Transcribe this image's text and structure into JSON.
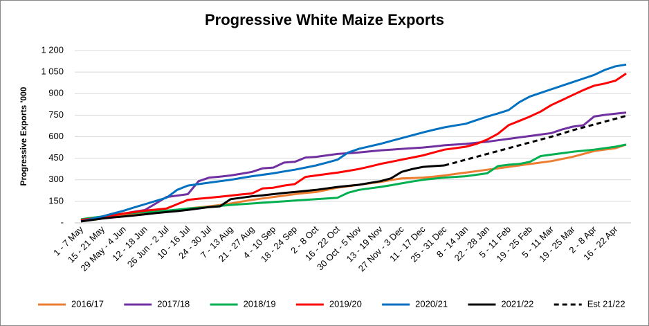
{
  "chart_data": {
    "type": "line",
    "title": "Progressive White Maize Exports",
    "y_label": "Progressive Exports '000",
    "categories": [
      "1 - 7 May",
      null,
      "15 - 21 May",
      null,
      "29 May - 4 Jun",
      null,
      "12 - 18 Jun",
      null,
      "26 Jun - 2 Jul",
      null,
      "10 - 16 Jul",
      null,
      "24 - 30 Jul",
      null,
      "7 - 13 Aug",
      null,
      "21 - 27 Aug",
      null,
      "4 - 10 Sep",
      null,
      "18 - 24 Sep",
      null,
      "2 - 8 Oct",
      null,
      "16 - 22 Oct",
      null,
      "30 Oct - 5 Nov",
      null,
      "13 - 19 Nov",
      null,
      "27 Nov - 3 Dec",
      null,
      "11 - 17 Dec",
      null,
      "25 - 31 Dec",
      null,
      "8 - 14 Jan",
      null,
      "22 - 28 Jan",
      null,
      "5 - 11 Feb",
      null,
      "19 - 25 Feb",
      null,
      "5 - 11 Mar",
      null,
      "19 - 25 Mar",
      null,
      "2 - 8 Apr",
      null,
      "16 - 22 Apr",
      null
    ],
    "ylim": [
      0,
      1200
    ],
    "yticks": [
      {
        "value": 0,
        "label": "-"
      },
      150,
      300,
      450,
      600,
      750,
      900,
      {
        "value": 1050,
        "label": "1 050"
      },
      {
        "value": 1200,
        "label": "1 200"
      }
    ],
    "grid": true,
    "legend": "bottom",
    "series": [
      {
        "name": "2016/17",
        "color": "#ED7D31",
        "dashed": false,
        "values": [
          20,
          28,
          35,
          42,
          50,
          60,
          70,
          75,
          80,
          90,
          100,
          108,
          115,
          125,
          135,
          148,
          160,
          170,
          180,
          190,
          200,
          208,
          215,
          230,
          245,
          255,
          265,
          275,
          285,
          298,
          310,
          312,
          315,
          322,
          330,
          340,
          350,
          360,
          370,
          380,
          390,
          400,
          410,
          420,
          430,
          445,
          460,
          480,
          500,
          510,
          520,
          545
        ]
      },
      {
        "name": "2017/18",
        "color": "#7030A0",
        "dashed": false,
        "values": [
          15,
          28,
          40,
          52,
          65,
          78,
          90,
          135,
          180,
          190,
          200,
          290,
          315,
          322,
          330,
          342,
          355,
          380,
          385,
          420,
          425,
          455,
          460,
          470,
          480,
          485,
          490,
          498,
          505,
          510,
          515,
          520,
          525,
          532,
          540,
          545,
          550,
          558,
          565,
          575,
          585,
          595,
          605,
          615,
          625,
          650,
          670,
          680,
          740,
          752,
          760,
          768
        ]
      },
      {
        "name": "2018/19",
        "color": "#00B050",
        "dashed": false,
        "values": [
          25,
          35,
          45,
          55,
          65,
          70,
          75,
          80,
          85,
          92,
          100,
          105,
          110,
          118,
          125,
          130,
          135,
          140,
          145,
          150,
          155,
          160,
          165,
          170,
          175,
          210,
          230,
          240,
          250,
          262,
          275,
          288,
          300,
          308,
          315,
          320,
          325,
          335,
          345,
          395,
          405,
          410,
          425,
          465,
          475,
          485,
          495,
          502,
          510,
          520,
          530,
          545
        ]
      },
      {
        "name": "2019/20",
        "color": "#FF0000",
        "dashed": false,
        "values": [
          20,
          30,
          40,
          52,
          65,
          75,
          85,
          92,
          100,
          130,
          160,
          168,
          175,
          182,
          190,
          198,
          205,
          240,
          245,
          260,
          270,
          320,
          330,
          340,
          350,
          362,
          375,
          392,
          410,
          425,
          440,
          455,
          470,
          490,
          510,
          520,
          530,
          550,
          580,
          620,
          680,
          710,
          740,
          775,
          820,
          855,
          890,
          925,
          955,
          970,
          990,
          1040
        ]
      },
      {
        "name": "2020/21",
        "color": "#0070C0",
        "dashed": false,
        "values": [
          10,
          28,
          45,
          65,
          85,
          108,
          130,
          153,
          175,
          230,
          260,
          270,
          280,
          290,
          300,
          313,
          325,
          335,
          345,
          358,
          370,
          385,
          400,
          420,
          440,
          490,
          515,
          533,
          550,
          570,
          590,
          610,
          630,
          648,
          665,
          678,
          690,
          715,
          740,
          762,
          785,
          840,
          880,
          905,
          930,
          955,
          980,
          1005,
          1030,
          1065,
          1090,
          1102
        ]
      },
      {
        "name": "2021/22",
        "color": "#000000",
        "dashed": false,
        "values": [
          10,
          20,
          30,
          38,
          45,
          52,
          60,
          68,
          75,
          82,
          90,
          100,
          110,
          115,
          165,
          175,
          185,
          192,
          200,
          208,
          215,
          222,
          230,
          240,
          250,
          258,
          265,
          278,
          290,
          310,
          355,
          375,
          390,
          395,
          400,
          null,
          null,
          null,
          null,
          null,
          null,
          null,
          null,
          null,
          null,
          null,
          null,
          null,
          null,
          null,
          null,
          null
        ]
      },
      {
        "name": "Est 21/22",
        "color": "#000000",
        "dashed": true,
        "values": [
          null,
          null,
          null,
          null,
          null,
          null,
          null,
          null,
          null,
          null,
          null,
          null,
          null,
          null,
          null,
          null,
          null,
          null,
          null,
          null,
          null,
          null,
          null,
          null,
          null,
          null,
          null,
          null,
          null,
          null,
          null,
          null,
          null,
          null,
          400,
          420,
          440,
          460,
          480,
          500,
          520,
          540,
          560,
          580,
          600,
          622,
          645,
          665,
          685,
          705,
          725,
          745
        ]
      }
    ]
  }
}
